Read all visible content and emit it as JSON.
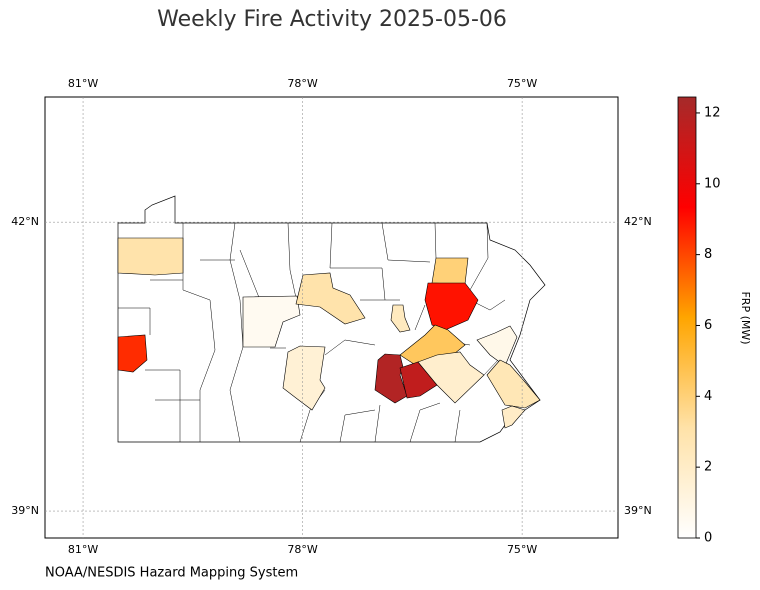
{
  "map": {
    "title": "Weekly Fire Activity 2025-05-06",
    "lonlim": [
      -81.52,
      -73.69
    ],
    "latlim": [
      38.72,
      43.3
    ],
    "lonticks": [
      {
        "value": -81,
        "label": "81°W"
      },
      {
        "value": -78,
        "label": "78°W"
      },
      {
        "value": -75,
        "label": "75°W"
      }
    ],
    "latticks": [
      {
        "value": 42,
        "label": "42°N"
      },
      {
        "value": 39,
        "label": "39°N"
      }
    ],
    "grid": true,
    "regions": [
      {
        "value": 3
      },
      {
        "value": 8.5
      },
      {
        "value": 0.5
      },
      {
        "value": 3
      },
      {
        "value": 2.3
      },
      {
        "value": 4
      },
      {
        "value": 9
      },
      {
        "value": 4.5
      },
      {
        "value": 1.5
      },
      {
        "value": 12
      },
      {
        "value": 11.5
      },
      {
        "value": 1.8
      },
      {
        "value": 0.8
      },
      {
        "value": 2.6
      },
      {
        "value": 2
      }
    ],
    "colorbar": {
      "label": "FRP (MW)",
      "lim": [
        0,
        12.45
      ],
      "ticks": [
        0,
        2,
        4,
        6,
        8,
        10,
        12
      ],
      "colors": [
        "#ffffff",
        "#ffe2a8",
        "#ffa500",
        "#ff0000",
        "#a52a2a"
      ]
    },
    "credit": "NOAA/NESDIS Hazard Mapping System"
  }
}
